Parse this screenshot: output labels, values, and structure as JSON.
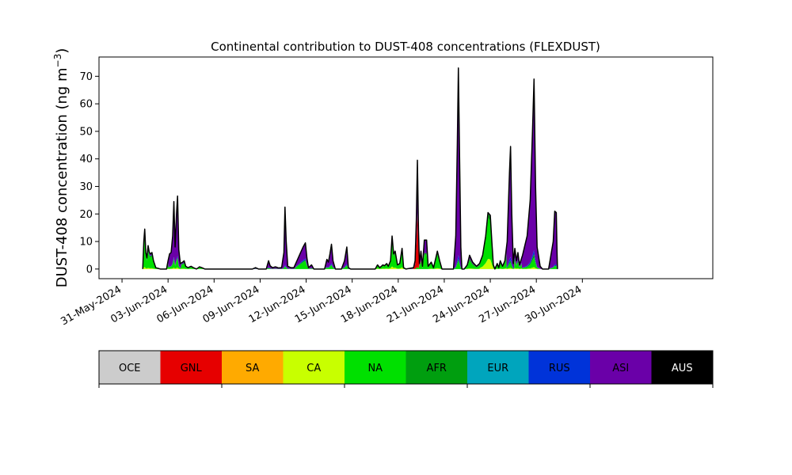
{
  "chart_data": {
    "type": "area",
    "title": "Continental contribution to DUST-408 concentrations (FLEXDUST)",
    "ylabel_main": "DUST-408 concentration (ng m",
    "ylabel_sup": "−3",
    "ylabel_close": ")",
    "xlabel": "",
    "ylim": [
      -3.5,
      77
    ],
    "xlim": [
      -1.5,
      38.5
    ],
    "x_ticks": [
      {
        "day": 0,
        "label": "31-May-2024"
      },
      {
        "day": 3,
        "label": "03-Jun-2024"
      },
      {
        "day": 6,
        "label": "06-Jun-2024"
      },
      {
        "day": 9,
        "label": "09-Jun-2024"
      },
      {
        "day": 12,
        "label": "12-Jun-2024"
      },
      {
        "day": 15,
        "label": "15-Jun-2024"
      },
      {
        "day": 18,
        "label": "18-Jun-2024"
      },
      {
        "day": 21,
        "label": "21-Jun-2024"
      },
      {
        "day": 24,
        "label": "24-Jun-2024"
      },
      {
        "day": 27,
        "label": "27-Jun-2024"
      },
      {
        "day": 30,
        "label": "30-Jun-2024"
      }
    ],
    "y_ticks": [
      0,
      10,
      20,
      30,
      40,
      50,
      60,
      70
    ],
    "grid": false,
    "stack_order": [
      "CA",
      "NA",
      "AFR",
      "RUS",
      "GNL",
      "ASI"
    ],
    "colors": {
      "OCE": "#cccccc",
      "GNL": "#e60000",
      "SA": "#ffaa00",
      "CA": "#c8ff00",
      "NA": "#00e000",
      "AFR": "#009e0f",
      "EUR": "#00a5bd",
      "RUS": "#0033d9",
      "ASI": "#6a00a8",
      "AUS": "#000000"
    },
    "total_profile": [
      [
        1.35,
        0
      ],
      [
        1.42,
        10
      ],
      [
        1.48,
        14.5
      ],
      [
        1.55,
        6
      ],
      [
        1.62,
        4
      ],
      [
        1.7,
        8.5
      ],
      [
        1.78,
        6
      ],
      [
        1.86,
        5.5
      ],
      [
        1.95,
        6
      ],
      [
        2.05,
        3
      ],
      [
        2.2,
        0.5
      ],
      [
        2.5,
        0
      ],
      [
        2.9,
        0
      ],
      [
        3.0,
        3
      ],
      [
        3.1,
        5.5
      ],
      [
        3.2,
        6
      ],
      [
        3.3,
        12
      ],
      [
        3.38,
        24.5
      ],
      [
        3.46,
        8
      ],
      [
        3.55,
        20
      ],
      [
        3.62,
        26.5
      ],
      [
        3.7,
        7
      ],
      [
        3.8,
        2
      ],
      [
        3.95,
        2.5
      ],
      [
        4.05,
        3
      ],
      [
        4.15,
        1
      ],
      [
        4.3,
        0.5
      ],
      [
        4.5,
        1
      ],
      [
        4.65,
        0.5
      ],
      [
        4.85,
        0
      ],
      [
        5.05,
        0.8
      ],
      [
        5.2,
        0.5
      ],
      [
        5.4,
        0
      ],
      [
        8.5,
        0
      ],
      [
        8.7,
        0.5
      ],
      [
        8.9,
        0
      ],
      [
        9.4,
        0
      ],
      [
        9.55,
        3
      ],
      [
        9.65,
        1.2
      ],
      [
        9.8,
        0.5
      ],
      [
        10.0,
        0.8
      ],
      [
        10.2,
        0.4
      ],
      [
        10.4,
        0.5
      ],
      [
        10.55,
        6
      ],
      [
        10.62,
        22.5
      ],
      [
        10.7,
        10
      ],
      [
        10.8,
        1
      ],
      [
        11.0,
        0.5
      ],
      [
        11.2,
        0.5
      ],
      [
        11.4,
        3
      ],
      [
        11.6,
        5.5
      ],
      [
        11.8,
        8
      ],
      [
        11.95,
        9.5
      ],
      [
        12.05,
        4
      ],
      [
        12.15,
        0.5
      ],
      [
        12.35,
        1.5
      ],
      [
        12.5,
        0
      ],
      [
        13.2,
        0
      ],
      [
        13.35,
        3.5
      ],
      [
        13.45,
        2.5
      ],
      [
        13.55,
        5.5
      ],
      [
        13.65,
        9
      ],
      [
        13.75,
        3
      ],
      [
        13.9,
        0
      ],
      [
        14.3,
        0
      ],
      [
        14.5,
        3
      ],
      [
        14.65,
        8
      ],
      [
        14.75,
        0.5
      ],
      [
        14.9,
        0
      ],
      [
        16.5,
        0
      ],
      [
        16.65,
        1.5
      ],
      [
        16.8,
        0.5
      ],
      [
        17.0,
        1.5
      ],
      [
        17.1,
        1.2
      ],
      [
        17.25,
        2
      ],
      [
        17.35,
        1
      ],
      [
        17.5,
        3
      ],
      [
        17.6,
        12
      ],
      [
        17.7,
        5.5
      ],
      [
        17.8,
        6.5
      ],
      [
        17.95,
        1.5
      ],
      [
        18.1,
        2
      ],
      [
        18.25,
        7.5
      ],
      [
        18.35,
        0.5
      ],
      [
        18.5,
        0
      ],
      [
        19.0,
        0.5
      ],
      [
        19.1,
        3
      ],
      [
        19.18,
        18
      ],
      [
        19.25,
        39.5
      ],
      [
        19.32,
        14
      ],
      [
        19.38,
        2
      ],
      [
        19.48,
        6.5
      ],
      [
        19.58,
        1
      ],
      [
        19.7,
        10.5
      ],
      [
        19.85,
        10.5
      ],
      [
        19.95,
        1
      ],
      [
        20.15,
        2.5
      ],
      [
        20.3,
        0.5
      ],
      [
        20.45,
        4
      ],
      [
        20.55,
        6.5
      ],
      [
        20.7,
        3
      ],
      [
        20.85,
        0
      ],
      [
        21.6,
        0
      ],
      [
        21.75,
        12
      ],
      [
        21.85,
        45
      ],
      [
        21.92,
        73
      ],
      [
        22.0,
        40
      ],
      [
        22.08,
        8
      ],
      [
        22.15,
        0
      ],
      [
        22.3,
        0
      ],
      [
        22.5,
        1.5
      ],
      [
        22.65,
        5
      ],
      [
        22.85,
        2.5
      ],
      [
        23.1,
        1
      ],
      [
        23.3,
        2
      ],
      [
        23.5,
        5
      ],
      [
        23.7,
        12
      ],
      [
        23.85,
        20.5
      ],
      [
        24.0,
        19.5
      ],
      [
        24.1,
        10
      ],
      [
        24.2,
        1.5
      ],
      [
        24.3,
        0
      ],
      [
        24.45,
        2
      ],
      [
        24.55,
        0.5
      ],
      [
        24.65,
        3
      ],
      [
        24.8,
        1
      ],
      [
        24.95,
        3
      ],
      [
        25.1,
        10
      ],
      [
        25.25,
        35
      ],
      [
        25.32,
        44.5
      ],
      [
        25.4,
        20
      ],
      [
        25.5,
        2
      ],
      [
        25.6,
        7.5
      ],
      [
        25.7,
        3
      ],
      [
        25.8,
        6
      ],
      [
        25.9,
        1.5
      ],
      [
        26.1,
        5
      ],
      [
        26.4,
        12
      ],
      [
        26.6,
        25
      ],
      [
        26.75,
        50
      ],
      [
        26.85,
        69
      ],
      [
        26.95,
        30
      ],
      [
        27.05,
        8
      ],
      [
        27.25,
        1
      ],
      [
        27.4,
        0
      ],
      [
        27.8,
        0
      ],
      [
        27.95,
        5
      ],
      [
        28.1,
        10
      ],
      [
        28.2,
        21
      ],
      [
        28.3,
        20.5
      ],
      [
        28.35,
        6
      ],
      [
        28.38,
        0
      ]
    ],
    "share_zones": [
      {
        "from": 1.3,
        "to": 3.0,
        "shares": [
          0.05,
          0.7,
          0.1,
          0.03,
          0,
          0.12
        ]
      },
      {
        "from": 3.0,
        "to": 3.85,
        "shares": [
          0.02,
          0.12,
          0.02,
          0.02,
          0,
          0.82
        ]
      },
      {
        "from": 3.85,
        "to": 5.5,
        "shares": [
          0.05,
          0.6,
          0.1,
          0.05,
          0,
          0.2
        ]
      },
      {
        "from": 8.4,
        "to": 10.4,
        "shares": [
          0,
          0.1,
          0.05,
          0.05,
          0,
          0.8
        ]
      },
      {
        "from": 10.4,
        "to": 10.85,
        "shares": [
          0,
          0.04,
          0.01,
          0.02,
          0,
          0.93
        ]
      },
      {
        "from": 10.85,
        "to": 11.3,
        "shares": [
          0,
          0.1,
          0.05,
          0.05,
          0,
          0.8
        ]
      },
      {
        "from": 11.3,
        "to": 12.2,
        "shares": [
          0,
          0.3,
          0.05,
          0.05,
          0,
          0.6
        ]
      },
      {
        "from": 12.2,
        "to": 15.0,
        "shares": [
          0,
          0.15,
          0.03,
          0.05,
          0,
          0.77
        ]
      },
      {
        "from": 16.4,
        "to": 17.55,
        "shares": [
          0.1,
          0.7,
          0.1,
          0,
          0,
          0.1
        ]
      },
      {
        "from": 17.55,
        "to": 18.45,
        "shares": [
          0.08,
          0.75,
          0.1,
          0,
          0,
          0.07
        ]
      },
      {
        "from": 18.45,
        "to": 18.95,
        "shares": [
          0,
          0.1,
          0,
          0,
          0,
          0.9
        ]
      },
      {
        "from": 18.95,
        "to": 19.35,
        "shares": [
          0,
          0.02,
          0,
          0,
          0.5,
          0.48
        ]
      },
      {
        "from": 19.35,
        "to": 19.6,
        "shares": [
          0,
          0.4,
          0.05,
          0,
          0.05,
          0.5
        ]
      },
      {
        "from": 19.6,
        "to": 19.95,
        "shares": [
          0,
          0.5,
          0.05,
          0,
          0,
          0.45
        ]
      },
      {
        "from": 19.95,
        "to": 20.9,
        "shares": [
          0.05,
          0.75,
          0.1,
          0,
          0,
          0.1
        ]
      },
      {
        "from": 20.9,
        "to": 22.2,
        "shares": [
          0,
          0.04,
          0.01,
          0.02,
          0,
          0.93
        ]
      },
      {
        "from": 22.2,
        "to": 23.3,
        "shares": [
          0.05,
          0.55,
          0.15,
          0,
          0,
          0.25
        ]
      },
      {
        "from": 23.3,
        "to": 24.3,
        "shares": [
          0.18,
          0.72,
          0.08,
          0,
          0,
          0.02
        ]
      },
      {
        "from": 24.3,
        "to": 25.05,
        "shares": [
          0.05,
          0.6,
          0.15,
          0,
          0,
          0.2
        ]
      },
      {
        "from": 25.05,
        "to": 25.55,
        "shares": [
          0.01,
          0.04,
          0.02,
          0.03,
          0,
          0.9
        ]
      },
      {
        "from": 25.55,
        "to": 26.05,
        "shares": [
          0.05,
          0.35,
          0.1,
          0.05,
          0,
          0.45
        ]
      },
      {
        "from": 26.05,
        "to": 27.3,
        "shares": [
          0.01,
          0.05,
          0.02,
          0.02,
          0,
          0.9
        ]
      },
      {
        "from": 27.3,
        "to": 28.5,
        "shares": [
          0,
          0.05,
          0.01,
          0.02,
          0,
          0.92
        ]
      }
    ]
  },
  "colorbar": {
    "labels": [
      "OCE",
      "GNL",
      "SA",
      "CA",
      "NA",
      "AFR",
      "EUR",
      "RUS",
      "ASI",
      "AUS"
    ],
    "label_colors": [
      "#000000",
      "#000000",
      "#000000",
      "#000000",
      "#000000",
      "#000000",
      "#000000",
      "#000000",
      "#000000",
      "#ffffff"
    ],
    "tick_at": [
      0,
      2,
      4,
      6,
      8,
      10
    ]
  }
}
